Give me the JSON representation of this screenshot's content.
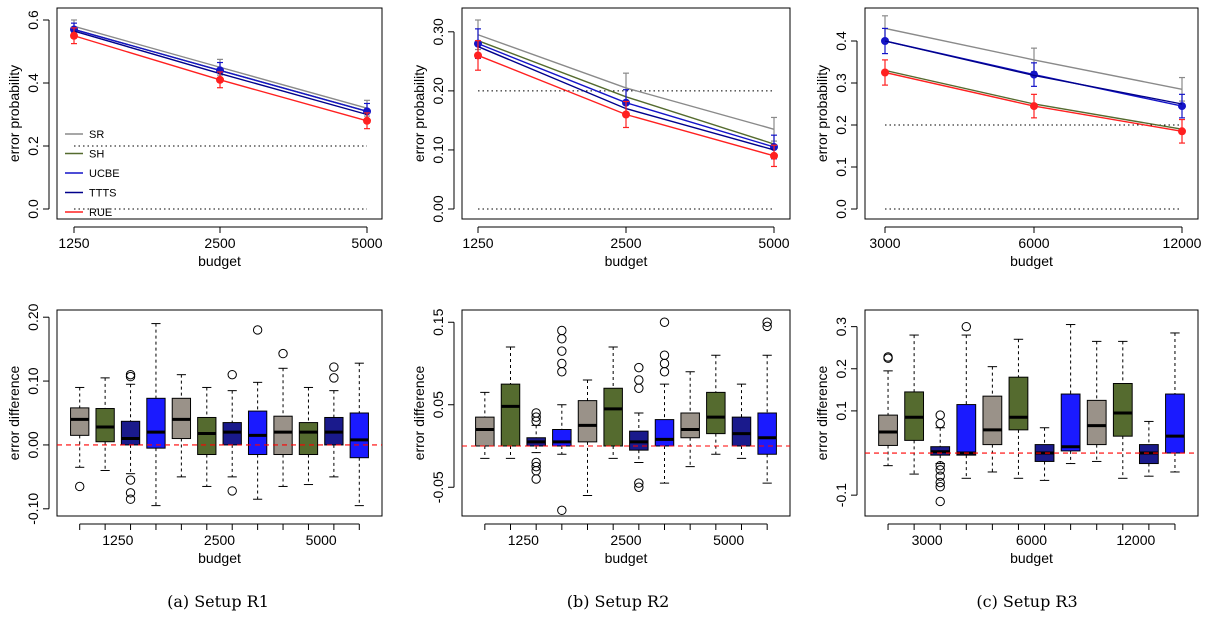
{
  "colors": {
    "SR": "#8a8a8a",
    "SH": "#556b2f",
    "UCBE": "#1414c8",
    "TTTS": "#00008b",
    "RUE": "#ff2020",
    "box_SR": "#9a9289",
    "box_SH": "#556b2f",
    "box_TTTS": "#1a1a8c",
    "box_RUE": "#1a1aff",
    "zero_line": "#ff0000"
  },
  "captions": [
    "(a) Setup R1",
    "(b) Setup R2",
    "(c) Setup R3"
  ],
  "chart_data": [
    {
      "id": "R1-line",
      "type": "line",
      "xlabel": "budget",
      "ylabel": "error probability",
      "x": [
        "1250",
        "2500",
        "5000"
      ],
      "ylim": [
        0,
        0.6
      ],
      "yticks": [
        "0.0",
        "0.2",
        "0.4",
        "0.6"
      ],
      "hlines": [
        0.2,
        0.0
      ],
      "legend": {
        "position": "left",
        "entries": [
          "SR",
          "SH",
          "UCBE",
          "TTTS",
          "RUE"
        ]
      },
      "series": [
        {
          "name": "SR",
          "values": [
            0.58,
            0.45,
            0.32
          ],
          "err": [
            0.02,
            0.025,
            0.025
          ],
          "markers": false
        },
        {
          "name": "SH",
          "values": [
            0.57,
            0.44,
            0.31
          ],
          "markers": false
        },
        {
          "name": "UCBE",
          "values": [
            0.57,
            0.44,
            0.31
          ],
          "err": [
            0.02,
            0.025,
            0.025
          ],
          "markers": true
        },
        {
          "name": "TTTS",
          "values": [
            0.565,
            0.43,
            0.3
          ],
          "markers": false
        },
        {
          "name": "RUE",
          "values": [
            0.55,
            0.41,
            0.28
          ],
          "err": [
            0.025,
            0.025,
            0.025
          ],
          "markers": true
        }
      ]
    },
    {
      "id": "R2-line",
      "type": "line",
      "xlabel": "budget",
      "ylabel": "error probability",
      "x": [
        "1250",
        "2500",
        "5000"
      ],
      "ylim": [
        0,
        0.32
      ],
      "yticks": [
        "0.00",
        "0.10",
        "0.20",
        "0.30"
      ],
      "hlines": [
        0.2,
        0.0
      ],
      "series": [
        {
          "name": "SR",
          "values": [
            0.295,
            0.205,
            0.135
          ],
          "err": [
            0.025,
            0.025,
            0.02
          ],
          "markers": false
        },
        {
          "name": "SH",
          "values": [
            0.285,
            0.19,
            0.11
          ],
          "markers": false
        },
        {
          "name": "UCBE",
          "values": [
            0.28,
            0.18,
            0.105
          ],
          "err": [
            0.025,
            0.022,
            0.02
          ],
          "markers": true
        },
        {
          "name": "TTTS",
          "values": [
            0.275,
            0.17,
            0.1
          ],
          "markers": false
        },
        {
          "name": "RUE",
          "values": [
            0.26,
            0.16,
            0.09
          ],
          "err": [
            0.025,
            0.022,
            0.018
          ],
          "markers": true
        }
      ]
    },
    {
      "id": "R3-line",
      "type": "line",
      "xlabel": "budget",
      "ylabel": "error probability",
      "x": [
        "3000",
        "6000",
        "12000"
      ],
      "ylim": [
        0,
        0.45
      ],
      "yticks": [
        "0.0",
        "0.1",
        "0.2",
        "0.3",
        "0.4"
      ],
      "hlines": [
        0.2,
        0.0
      ],
      "series": [
        {
          "name": "SR",
          "values": [
            0.43,
            0.355,
            0.285
          ],
          "err": [
            0.03,
            0.028,
            0.028
          ],
          "markers": false
        },
        {
          "name": "UCBE",
          "values": [
            0.4,
            0.32,
            0.245
          ],
          "err": [
            0.03,
            0.028,
            0.028
          ],
          "markers": true
        },
        {
          "name": "TTTS",
          "values": [
            0.4,
            0.318,
            0.25
          ],
          "markers": false
        },
        {
          "name": "SH",
          "values": [
            0.33,
            0.25,
            0.19
          ],
          "markers": false
        },
        {
          "name": "RUE",
          "values": [
            0.325,
            0.245,
            0.185
          ],
          "err": [
            0.03,
            0.028,
            0.028
          ],
          "markers": true
        }
      ]
    },
    {
      "id": "R1-box",
      "type": "box",
      "xlabel": "budget",
      "ylabel": "error difference",
      "categories": [
        "1250",
        "2500",
        "5000"
      ],
      "ylim": [
        -0.105,
        0.205
      ],
      "yticks": [
        "-0.10",
        "0.00",
        "0.10",
        "0.20"
      ],
      "zero_line": 0,
      "boxes": [
        {
          "group": 0,
          "series": "SR",
          "min": -0.035,
          "q1": 0.015,
          "median": 0.04,
          "q3": 0.058,
          "max": 0.09,
          "outliers": [
            -0.065
          ]
        },
        {
          "group": 0,
          "series": "SH",
          "min": -0.04,
          "q1": 0.005,
          "median": 0.028,
          "q3": 0.057,
          "max": 0.105,
          "outliers": []
        },
        {
          "group": 0,
          "series": "TTTS",
          "min": -0.045,
          "q1": 0.0,
          "median": 0.01,
          "q3": 0.037,
          "max": 0.095,
          "outliers": [
            0.11,
            0.107,
            -0.055,
            -0.075,
            -0.085
          ]
        },
        {
          "group": 0,
          "series": "RUE",
          "min": -0.095,
          "q1": -0.005,
          "median": 0.02,
          "q3": 0.073,
          "max": 0.19,
          "outliers": []
        },
        {
          "group": 1,
          "series": "SR",
          "min": -0.05,
          "q1": 0.01,
          "median": 0.04,
          "q3": 0.073,
          "max": 0.11,
          "outliers": []
        },
        {
          "group": 1,
          "series": "SH",
          "min": -0.065,
          "q1": -0.015,
          "median": 0.018,
          "q3": 0.043,
          "max": 0.09,
          "outliers": []
        },
        {
          "group": 1,
          "series": "TTTS",
          "min": -0.05,
          "q1": 0.0,
          "median": 0.02,
          "q3": 0.035,
          "max": 0.085,
          "outliers": [
            0.11,
            -0.072
          ]
        },
        {
          "group": 1,
          "series": "RUE",
          "min": -0.085,
          "q1": -0.015,
          "median": 0.015,
          "q3": 0.053,
          "max": 0.098,
          "outliers": [
            0.18
          ]
        },
        {
          "group": 2,
          "series": "SR",
          "min": -0.065,
          "q1": -0.015,
          "median": 0.02,
          "q3": 0.045,
          "max": 0.12,
          "outliers": [
            0.143
          ]
        },
        {
          "group": 2,
          "series": "SH",
          "min": -0.062,
          "q1": -0.015,
          "median": 0.02,
          "q3": 0.035,
          "max": 0.09,
          "outliers": []
        },
        {
          "group": 2,
          "series": "TTTS",
          "min": -0.05,
          "q1": 0.0,
          "median": 0.02,
          "q3": 0.043,
          "max": 0.085,
          "outliers": [
            0.122,
            0.105
          ]
        },
        {
          "group": 2,
          "series": "RUE",
          "min": -0.095,
          "q1": -0.02,
          "median": 0.008,
          "q3": 0.05,
          "max": 0.128,
          "outliers": []
        }
      ]
    },
    {
      "id": "R2-box",
      "type": "box",
      "xlabel": "budget",
      "ylabel": "error difference",
      "categories": [
        "1250",
        "2500",
        "5000"
      ],
      "ylim": [
        -0.08,
        0.16
      ],
      "yticks": [
        "-0.05",
        "0.05",
        "0.15"
      ],
      "zero_line": 0,
      "boxes": [
        {
          "group": 0,
          "series": "SR",
          "min": -0.015,
          "q1": 0.0,
          "median": 0.02,
          "q3": 0.035,
          "max": 0.065,
          "outliers": []
        },
        {
          "group": 0,
          "series": "SH",
          "min": -0.015,
          "q1": 0.0,
          "median": 0.048,
          "q3": 0.075,
          "max": 0.12,
          "outliers": []
        },
        {
          "group": 0,
          "series": "TTTS",
          "min": -0.008,
          "q1": 0.0,
          "median": 0.005,
          "q3": 0.01,
          "max": 0.025,
          "outliers": [
            0.04,
            0.035,
            0.03,
            -0.02,
            -0.025,
            -0.03,
            -0.04
          ]
        },
        {
          "group": 0,
          "series": "RUE",
          "min": -0.01,
          "q1": 0.0,
          "median": 0.005,
          "q3": 0.02,
          "max": 0.05,
          "outliers": [
            0.14,
            0.13,
            0.115,
            0.1,
            0.09,
            -0.078
          ]
        },
        {
          "group": 1,
          "series": "SR",
          "min": -0.06,
          "q1": 0.005,
          "median": 0.025,
          "q3": 0.055,
          "max": 0.08,
          "outliers": []
        },
        {
          "group": 1,
          "series": "SH",
          "min": -0.015,
          "q1": 0.0,
          "median": 0.045,
          "q3": 0.07,
          "max": 0.12,
          "outliers": []
        },
        {
          "group": 1,
          "series": "TTTS",
          "min": -0.02,
          "q1": -0.005,
          "median": 0.005,
          "q3": 0.018,
          "max": 0.04,
          "outliers": [
            0.095,
            0.08,
            0.07,
            -0.045,
            -0.05
          ]
        },
        {
          "group": 1,
          "series": "RUE",
          "min": -0.045,
          "q1": 0.0,
          "median": 0.008,
          "q3": 0.032,
          "max": 0.075,
          "outliers": [
            0.15,
            0.11,
            0.1,
            0.09
          ]
        },
        {
          "group": 2,
          "series": "SR",
          "min": -0.025,
          "q1": 0.01,
          "median": 0.02,
          "q3": 0.04,
          "max": 0.09,
          "outliers": []
        },
        {
          "group": 2,
          "series": "SH",
          "min": -0.01,
          "q1": 0.015,
          "median": 0.035,
          "q3": 0.065,
          "max": 0.11,
          "outliers": []
        },
        {
          "group": 2,
          "series": "TTTS",
          "min": -0.015,
          "q1": 0.0,
          "median": 0.015,
          "q3": 0.035,
          "max": 0.075,
          "outliers": []
        },
        {
          "group": 2,
          "series": "RUE",
          "min": -0.045,
          "q1": -0.01,
          "median": 0.01,
          "q3": 0.04,
          "max": 0.11,
          "outliers": [
            0.15,
            0.145
          ]
        }
      ]
    },
    {
      "id": "R3-box",
      "type": "box",
      "xlabel": "budget",
      "ylabel": "error difference",
      "categories": [
        "3000",
        "6000",
        "12000"
      ],
      "ylim": [
        -0.14,
        0.33
      ],
      "yticks": [
        "-0.1",
        "0.1",
        "0.2",
        "0.3"
      ],
      "zero_line": 0,
      "boxes": [
        {
          "group": 0,
          "series": "SR",
          "min": -0.03,
          "q1": 0.018,
          "median": 0.05,
          "q3": 0.09,
          "max": 0.195,
          "outliers": [
            0.228,
            0.225
          ]
        },
        {
          "group": 0,
          "series": "SH",
          "min": -0.05,
          "q1": 0.03,
          "median": 0.085,
          "q3": 0.145,
          "max": 0.28,
          "outliers": []
        },
        {
          "group": 0,
          "series": "TTTS",
          "min": -0.025,
          "q1": -0.005,
          "median": 0.003,
          "q3": 0.015,
          "max": 0.06,
          "outliers": [
            0.09,
            0.07,
            -0.03,
            -0.04,
            -0.055,
            -0.07,
            -0.08,
            -0.115
          ]
        },
        {
          "group": 0,
          "series": "RUE",
          "min": -0.06,
          "q1": -0.005,
          "median": 0.0,
          "q3": 0.115,
          "max": 0.28,
          "outliers": [
            0.3
          ]
        },
        {
          "group": 1,
          "series": "SR",
          "min": -0.045,
          "q1": 0.02,
          "median": 0.055,
          "q3": 0.135,
          "max": 0.205,
          "outliers": []
        },
        {
          "group": 1,
          "series": "SH",
          "min": -0.06,
          "q1": 0.055,
          "median": 0.085,
          "q3": 0.18,
          "max": 0.27,
          "outliers": []
        },
        {
          "group": 1,
          "series": "TTTS",
          "min": -0.065,
          "q1": -0.02,
          "median": 0.0,
          "q3": 0.02,
          "max": 0.06,
          "outliers": []
        },
        {
          "group": 1,
          "series": "RUE",
          "min": -0.025,
          "q1": 0.005,
          "median": 0.015,
          "q3": 0.14,
          "max": 0.305,
          "outliers": []
        },
        {
          "group": 2,
          "series": "SR",
          "min": -0.02,
          "q1": 0.02,
          "median": 0.065,
          "q3": 0.125,
          "max": 0.265,
          "outliers": []
        },
        {
          "group": 2,
          "series": "SH",
          "min": -0.06,
          "q1": 0.04,
          "median": 0.095,
          "q3": 0.165,
          "max": 0.265,
          "outliers": []
        },
        {
          "group": 2,
          "series": "TTTS",
          "min": -0.055,
          "q1": -0.025,
          "median": 0.0,
          "q3": 0.02,
          "max": 0.075,
          "outliers": []
        },
        {
          "group": 2,
          "series": "RUE",
          "min": -0.045,
          "q1": 0.0,
          "median": 0.04,
          "q3": 0.14,
          "max": 0.285,
          "outliers": []
        }
      ]
    }
  ]
}
